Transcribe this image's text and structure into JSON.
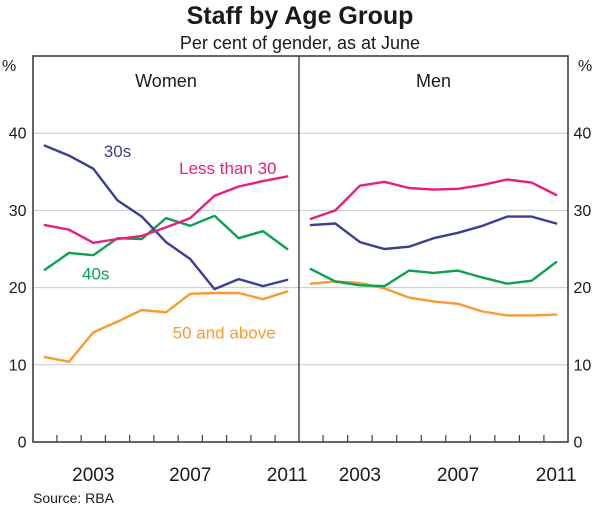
{
  "title": "Staff by Age Group",
  "subtitle": "Per cent of gender, as at June",
  "source": "Source: RBA",
  "colors": {
    "less_than_30": "#e81f7e",
    "thirties": "#3a3e96",
    "forties": "#0ba04f",
    "fifty_and_above": "#f89b33",
    "grid": "#c9c9c9",
    "axis": "#404040",
    "text": "#1a1a1a"
  },
  "chart_data": {
    "type": "line",
    "title": "Staff by Age Group",
    "subtitle": "Per cent of gender, as at June",
    "unit_label": "%",
    "ylim": [
      0,
      50
    ],
    "yticks": [
      0,
      10,
      20,
      30,
      40
    ],
    "grid": true,
    "legend_position": "inline-annotations",
    "x": [
      2001,
      2002,
      2003,
      2004,
      2005,
      2006,
      2007,
      2008,
      2009,
      2010,
      2011
    ],
    "xtick_labels": [
      2003,
      2007,
      2011
    ],
    "panels": [
      {
        "label": "Women",
        "series": [
          {
            "name": "Less than 30",
            "color": "#e81f7e",
            "values": [
              28.1,
              27.5,
              25.8,
              26.3,
              26.7,
              27.8,
              29.0,
              31.9,
              33.1,
              33.8,
              34.4
            ]
          },
          {
            "name": "30s",
            "color": "#3a3e96",
            "values": [
              38.4,
              37.1,
              35.4,
              31.3,
              29.2,
              25.9,
              23.7,
              19.8,
              21.1,
              20.2,
              21.0
            ]
          },
          {
            "name": "40s",
            "color": "#0ba04f",
            "values": [
              22.3,
              24.5,
              24.2,
              26.4,
              26.3,
              29.0,
              28.0,
              29.3,
              26.4,
              27.3,
              25.0
            ]
          },
          {
            "name": "50 and above",
            "color": "#f89b33",
            "values": [
              11.0,
              10.4,
              14.2,
              15.6,
              17.1,
              16.8,
              19.2,
              19.3,
              19.3,
              18.5,
              19.5
            ]
          }
        ]
      },
      {
        "label": "Men",
        "series": [
          {
            "name": "Less than 30",
            "color": "#e81f7e",
            "values": [
              28.9,
              30.0,
              33.2,
              33.7,
              32.9,
              32.7,
              32.8,
              33.3,
              34.0,
              33.6,
              32.0
            ]
          },
          {
            "name": "30s",
            "color": "#3a3e96",
            "values": [
              28.1,
              28.3,
              25.9,
              25.0,
              25.3,
              26.4,
              27.1,
              28.0,
              29.2,
              29.2,
              28.3
            ]
          },
          {
            "name": "40s",
            "color": "#0ba04f",
            "values": [
              22.4,
              20.8,
              20.3,
              20.2,
              22.2,
              21.9,
              22.2,
              21.3,
              20.5,
              20.9,
              23.3
            ]
          },
          {
            "name": "50 and above",
            "color": "#f89b33",
            "values": [
              20.5,
              20.8,
              20.6,
              19.9,
              18.7,
              18.2,
              17.9,
              16.9,
              16.4,
              16.4,
              16.5
            ]
          }
        ]
      }
    ],
    "annotations": [
      {
        "panel": 0,
        "text": "30s",
        "year": 2004.0,
        "value": 37.7,
        "color": "#3a3e96"
      },
      {
        "panel": 0,
        "text": "Less than 30",
        "year": 2008.55,
        "value": 35.5,
        "color": "#e81f7e"
      },
      {
        "panel": 0,
        "text": "40s",
        "year": 2003.1,
        "value": 21.8,
        "color": "#0ba04f"
      },
      {
        "panel": 0,
        "text": "50 and above",
        "year": 2008.4,
        "value": 14.2,
        "color": "#f89b33"
      }
    ]
  }
}
